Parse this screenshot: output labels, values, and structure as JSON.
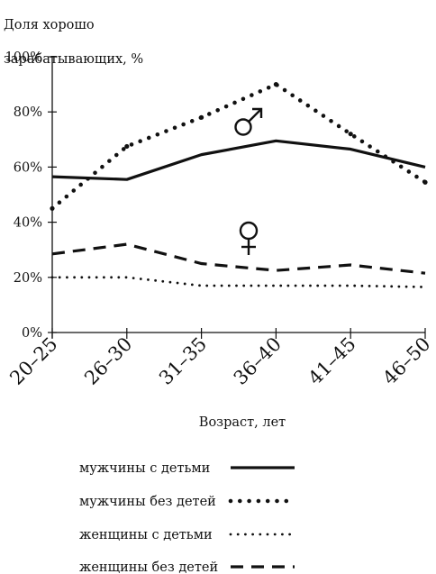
{
  "chart_data": {
    "type": "line",
    "ylabel_lines": [
      "Доля хорошо",
      "зарабатывающих, %"
    ],
    "xlabel": "Возраст, лет",
    "categories": [
      "20–25",
      "26–30",
      "31–35",
      "36–40",
      "41–45",
      "46–50"
    ],
    "y_ticks": [
      "0%",
      "20%",
      "40%",
      "60%",
      "80%",
      "100%"
    ],
    "ylim": [
      0,
      100
    ],
    "grid": false,
    "legend_position": "bottom",
    "series": [
      {
        "name": "мужчины с детьми",
        "style": "solid",
        "values": [
          56.5,
          55.5,
          64.5,
          69.5,
          66.5,
          60
        ]
      },
      {
        "name": "мужчины без детей",
        "style": "bold-dotted",
        "values": [
          45,
          67.5,
          78,
          90,
          72,
          54.5
        ]
      },
      {
        "name": "женщины с детьми",
        "style": "fine-dotted",
        "values": [
          20,
          20,
          17,
          17,
          17,
          16.5
        ]
      },
      {
        "name": "женщины без детей",
        "style": "dashed",
        "values": [
          28.5,
          32,
          25,
          22.5,
          24.5,
          21.5
        ]
      }
    ],
    "annotations": [
      {
        "symbol": "male-symbol",
        "near_series": "мужчины без детей"
      },
      {
        "symbol": "female-symbol",
        "near_series": "женщины без детей"
      }
    ],
    "color": "#111111"
  }
}
